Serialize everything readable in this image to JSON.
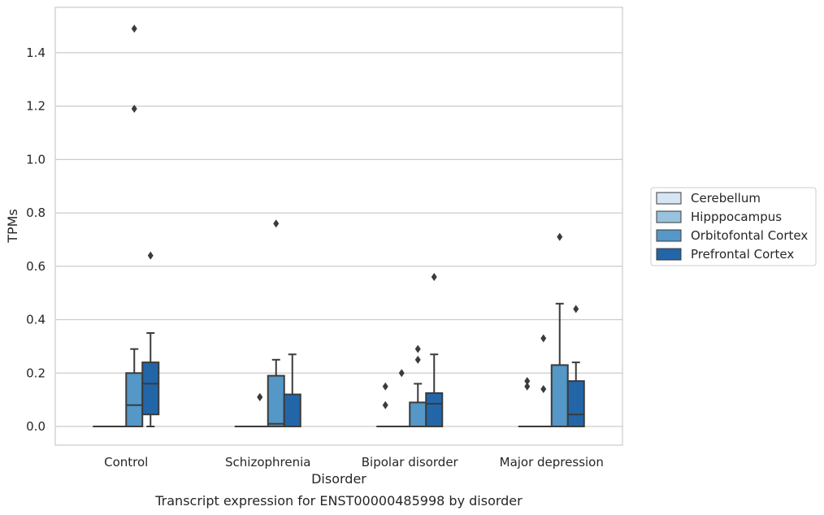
{
  "chart_data": {
    "type": "box",
    "caption": "Transcript expression for ENST00000485998 by disorder",
    "xlabel": "Disorder",
    "ylabel": "TPMs",
    "categories": [
      "Control",
      "Schizophrenia",
      "Bipolar disorder",
      "Major depression"
    ],
    "ylim": [
      -0.07,
      1.57
    ],
    "yticks": [
      "0.0",
      "0.2",
      "0.4",
      "0.6",
      "0.8",
      "1.0",
      "1.2",
      "1.4"
    ],
    "grid": "horizontal",
    "legend_position": "right",
    "series": [
      {
        "name": "Cerebellum",
        "color": "#d5e5f3",
        "boxes": [
          {
            "whisker_low": 0,
            "q1": 0,
            "median": 0,
            "q3": 0,
            "whisker_high": 0,
            "outliers": []
          },
          {
            "whisker_low": 0,
            "q1": 0,
            "median": 0,
            "q3": 0,
            "whisker_high": 0,
            "outliers": []
          },
          {
            "whisker_low": 0,
            "q1": 0,
            "median": 0,
            "q3": 0,
            "whisker_high": 0,
            "outliers": [
              0.08,
              0.15
            ]
          },
          {
            "whisker_low": 0,
            "q1": 0,
            "median": 0,
            "q3": 0,
            "whisker_high": 0,
            "outliers": [
              0.15,
              0.17
            ]
          }
        ]
      },
      {
        "name": "Hipppocampus",
        "color": "#99c2dd",
        "boxes": [
          {
            "whisker_low": 0,
            "q1": 0,
            "median": 0,
            "q3": 0,
            "whisker_high": 0,
            "outliers": []
          },
          {
            "whisker_low": 0,
            "q1": 0,
            "median": 0,
            "q3": 0,
            "whisker_high": 0,
            "outliers": [
              0.11,
              0.11
            ]
          },
          {
            "whisker_low": 0,
            "q1": 0,
            "median": 0,
            "q3": 0,
            "whisker_high": 0,
            "outliers": [
              0.2
            ]
          },
          {
            "whisker_low": 0,
            "q1": 0,
            "median": 0,
            "q3": 0,
            "whisker_high": 0,
            "outliers": [
              0.14,
              0.33
            ]
          }
        ]
      },
      {
        "name": "Orbitofontal Cortex",
        "color": "#5597c6",
        "boxes": [
          {
            "whisker_low": 0,
            "q1": 0,
            "median": 0.08,
            "q3": 0.2,
            "whisker_high": 0.29,
            "outliers": [
              1.19,
              1.49
            ]
          },
          {
            "whisker_low": 0,
            "q1": 0,
            "median": 0.01,
            "q3": 0.19,
            "whisker_high": 0.25,
            "outliers": [
              0.76
            ]
          },
          {
            "whisker_low": 0,
            "q1": 0,
            "median": 0,
            "q3": 0.09,
            "whisker_high": 0.16,
            "outliers": [
              0.25,
              0.29
            ]
          },
          {
            "whisker_low": 0,
            "q1": 0,
            "median": 0,
            "q3": 0.23,
            "whisker_high": 0.46,
            "outliers": [
              0.71
            ]
          }
        ]
      },
      {
        "name": "Prefrontal Cortex",
        "color": "#2266a8",
        "boxes": [
          {
            "whisker_low": 0,
            "q1": 0.045,
            "median": 0.16,
            "q3": 0.24,
            "whisker_high": 0.35,
            "outliers": [
              0.64
            ]
          },
          {
            "whisker_low": 0,
            "q1": 0,
            "median": 0,
            "q3": 0.12,
            "whisker_high": 0.27,
            "outliers": []
          },
          {
            "whisker_low": 0,
            "q1": 0,
            "median": 0.085,
            "q3": 0.125,
            "whisker_high": 0.27,
            "outliers": [
              0.56
            ]
          },
          {
            "whisker_low": 0,
            "q1": 0,
            "median": 0.045,
            "q3": 0.17,
            "whisker_high": 0.24,
            "outliers": [
              0.44
            ]
          }
        ]
      }
    ]
  }
}
